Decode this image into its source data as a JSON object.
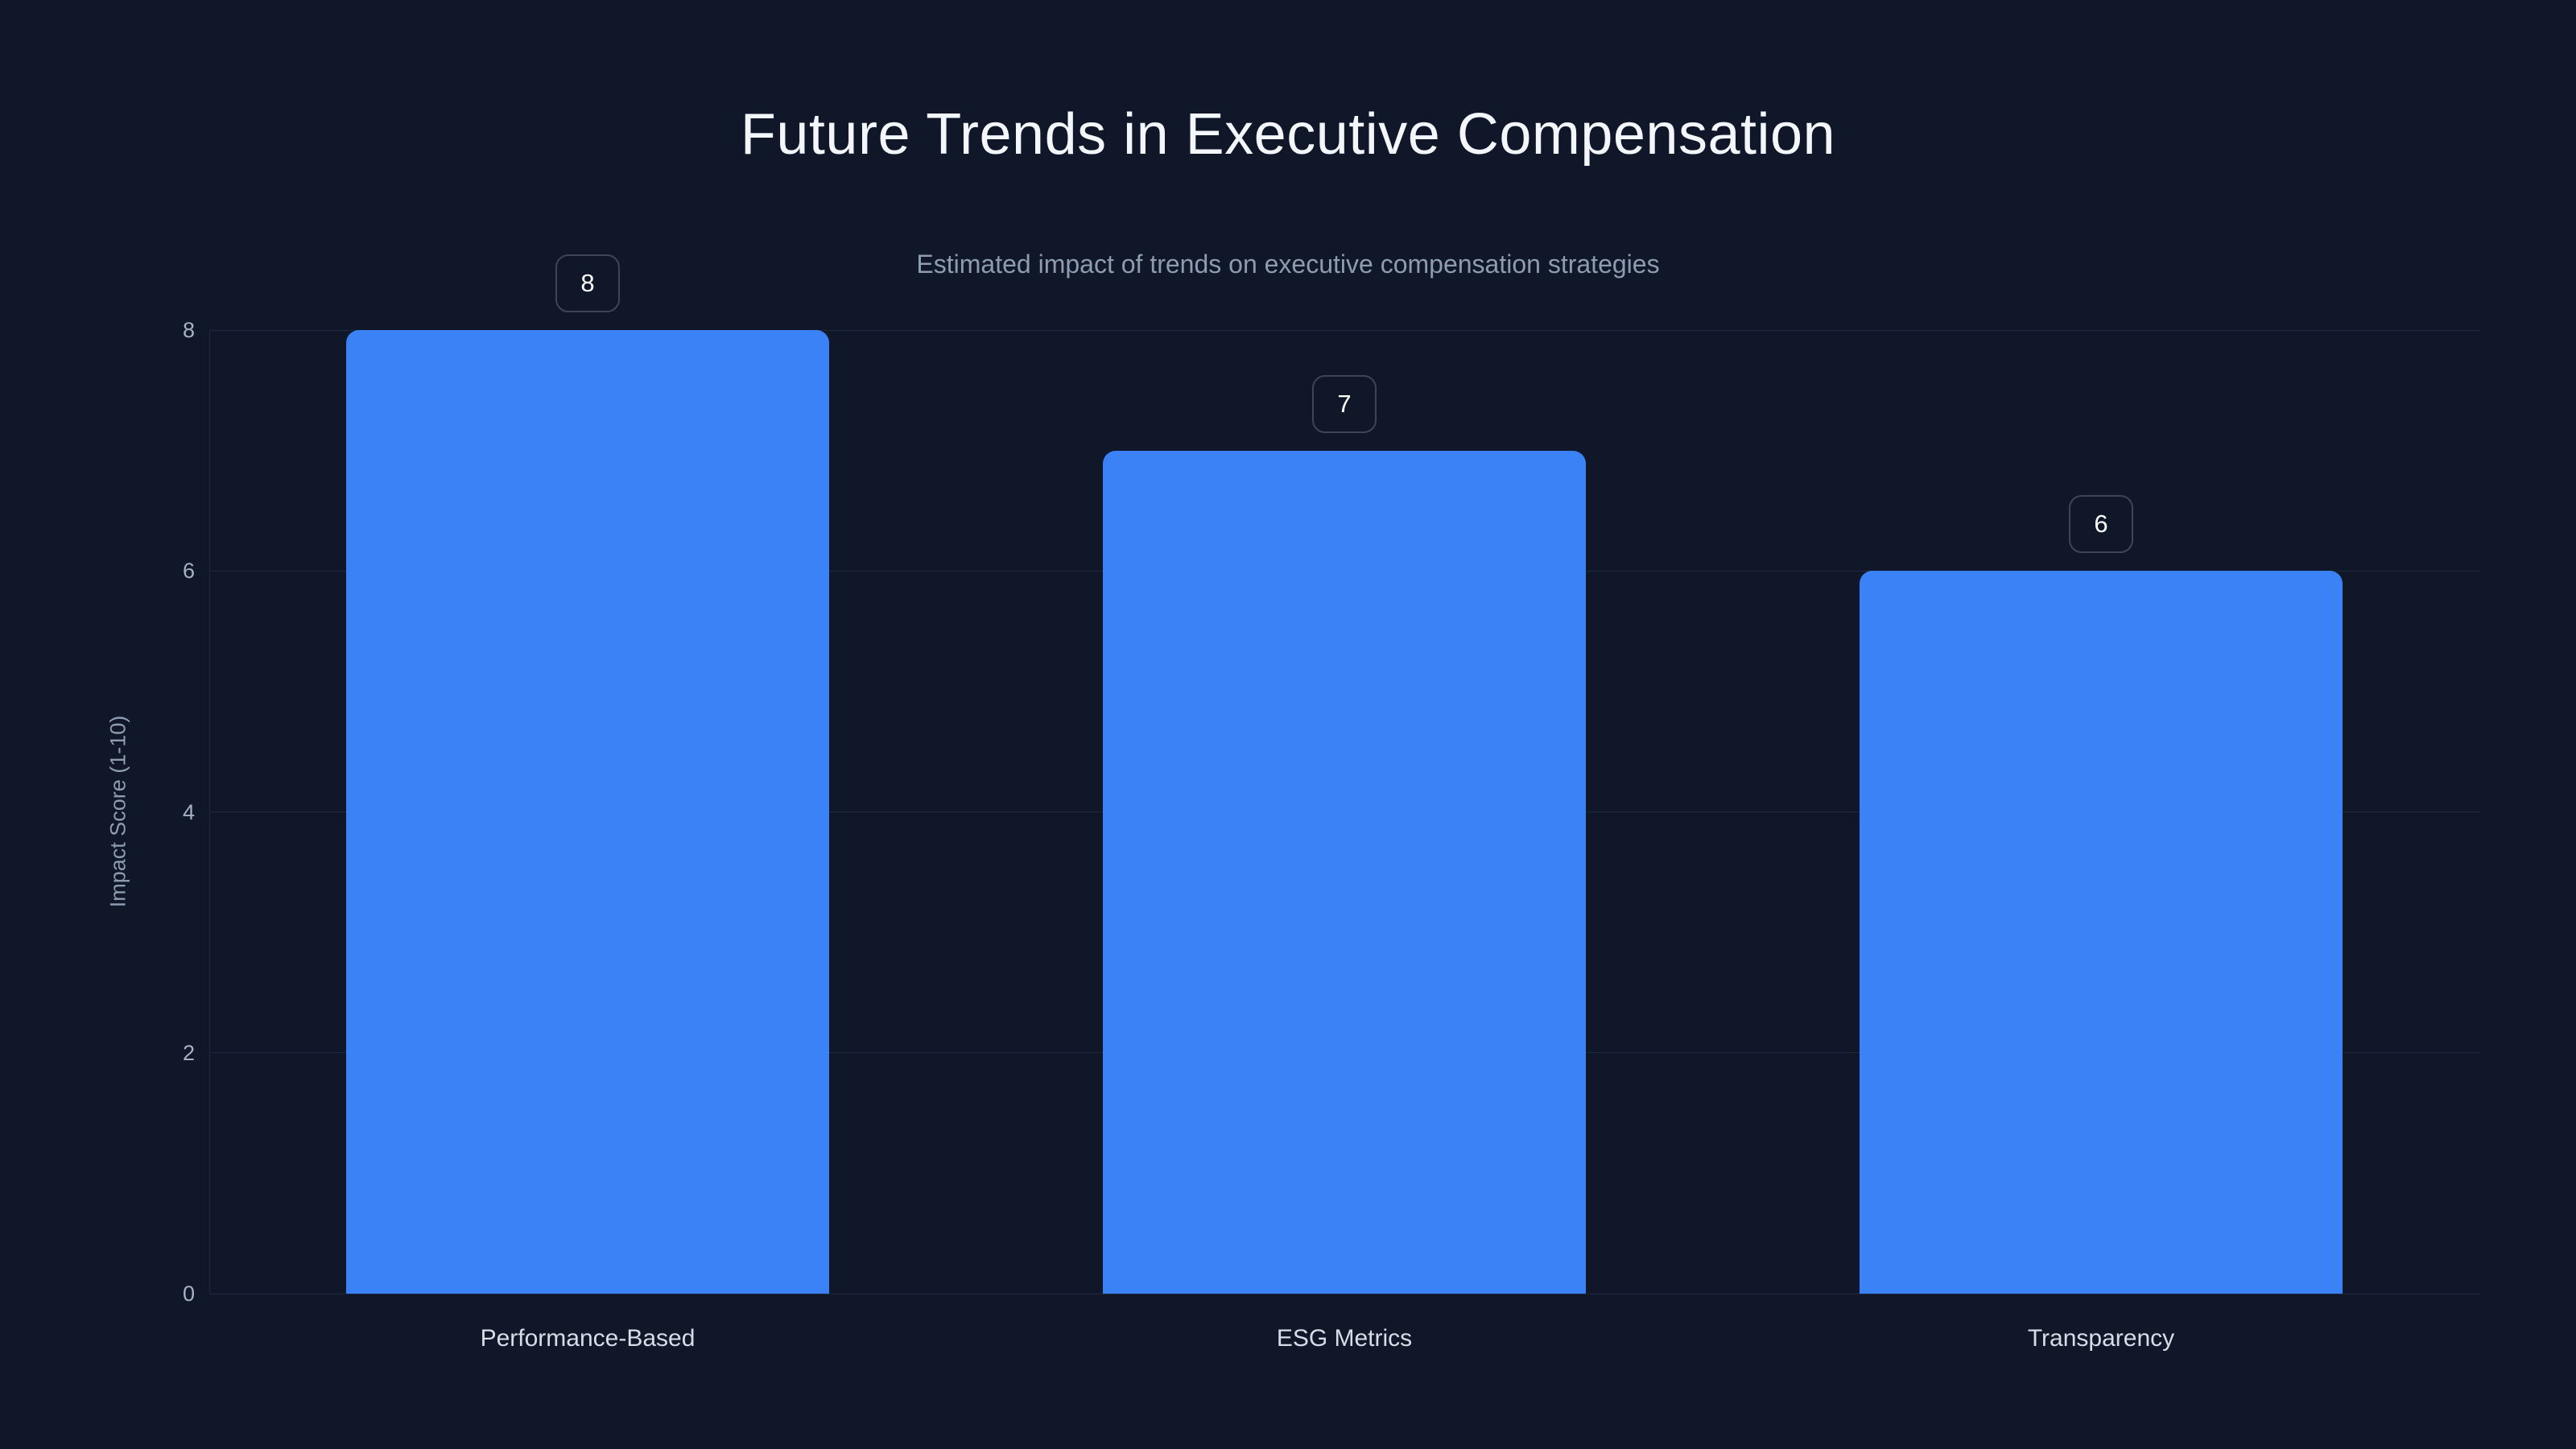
{
  "chart": {
    "title": "Future Trends in Executive Compensation",
    "subtitle": "Estimated impact of trends on executive compensation strategies",
    "y_axis_title": "Impact Score (1-10)"
  },
  "chart_data": {
    "type": "bar",
    "categories": [
      "Performance-Based",
      "ESG Metrics",
      "Transparency"
    ],
    "values": [
      8,
      7,
      6
    ],
    "data_labels": [
      "8",
      "7",
      "6"
    ],
    "title": "Future Trends in Executive Compensation",
    "subtitle": "Estimated impact of trends on executive compensation strategies",
    "xlabel": "",
    "ylabel": "Impact Score (1-10)",
    "ylim": [
      0,
      8
    ],
    "yticks": [
      0,
      2,
      4,
      6,
      8
    ],
    "grid": true,
    "legend": false
  },
  "colors": {
    "background": "#0f1728",
    "bar": "#3b82f6",
    "gridline": "#1e2a3c",
    "title_text": "#f3f6fa",
    "subtitle_text": "#8d9cb0",
    "tick_text": "#a6b2c3",
    "category_text": "#d6dde7",
    "badge_border": "#3c4657",
    "badge_text": "#ffffff"
  }
}
